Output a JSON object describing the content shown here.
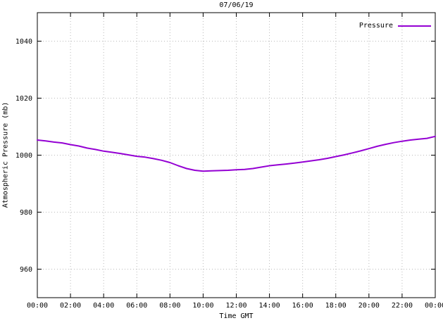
{
  "chart_data": {
    "type": "line",
    "title": "07/06/19",
    "xlabel": "Time GMT",
    "ylabel": "Atmospheric Pressure (mb)",
    "xlim": [
      0,
      24
    ],
    "ylim": [
      950,
      1050
    ],
    "grid": true,
    "legend_position": "top-right-inside",
    "xticks": [
      {
        "value": 0,
        "label": "00:00"
      },
      {
        "value": 2,
        "label": "02:00"
      },
      {
        "value": 4,
        "label": "04:00"
      },
      {
        "value": 6,
        "label": "06:00"
      },
      {
        "value": 8,
        "label": "08:00"
      },
      {
        "value": 10,
        "label": "10:00"
      },
      {
        "value": 12,
        "label": "12:00"
      },
      {
        "value": 14,
        "label": "14:00"
      },
      {
        "value": 16,
        "label": "16:00"
      },
      {
        "value": 18,
        "label": "18:00"
      },
      {
        "value": 20,
        "label": "20:00"
      },
      {
        "value": 22,
        "label": "22:00"
      },
      {
        "value": 24,
        "label": "00:00"
      }
    ],
    "yticks": [
      {
        "value": 960,
        "label": "960"
      },
      {
        "value": 980,
        "label": "980"
      },
      {
        "value": 1000,
        "label": "1000"
      },
      {
        "value": 1020,
        "label": "1020"
      },
      {
        "value": 1040,
        "label": "1040"
      }
    ],
    "series": [
      {
        "name": "Pressure",
        "color": "#9400d3",
        "x_hours": [
          0,
          0.5,
          1,
          1.5,
          2,
          2.5,
          3,
          3.5,
          4,
          4.5,
          5,
          5.5,
          6,
          6.5,
          7,
          7.5,
          8,
          8.5,
          9,
          9.5,
          10,
          10.5,
          11,
          11.5,
          12,
          12.5,
          13,
          13.5,
          14,
          14.5,
          15,
          15.5,
          16,
          16.5,
          17,
          17.5,
          18,
          18.5,
          19,
          19.5,
          20,
          20.5,
          21,
          21.5,
          22,
          22.5,
          23,
          23.5,
          24
        ],
        "values": [
          1005.3,
          1005.0,
          1004.6,
          1004.3,
          1003.7,
          1003.2,
          1002.5,
          1002.0,
          1001.4,
          1001.0,
          1000.6,
          1000.1,
          999.6,
          999.3,
          998.8,
          998.2,
          997.4,
          996.3,
          995.3,
          994.7,
          994.4,
          994.5,
          994.6,
          994.7,
          994.9,
          995.0,
          995.3,
          995.8,
          996.3,
          996.6,
          996.9,
          997.2,
          997.6,
          998.0,
          998.4,
          998.9,
          999.5,
          1000.1,
          1000.8,
          1001.5,
          1002.3,
          1003.1,
          1003.8,
          1004.4,
          1004.9,
          1005.3,
          1005.6,
          1005.9,
          1006.6
        ]
      }
    ]
  },
  "colors": {
    "line": "#9400d3",
    "grid": "#b9b9b9",
    "axis": "#000000",
    "background": "#ffffff",
    "text": "#000000"
  }
}
